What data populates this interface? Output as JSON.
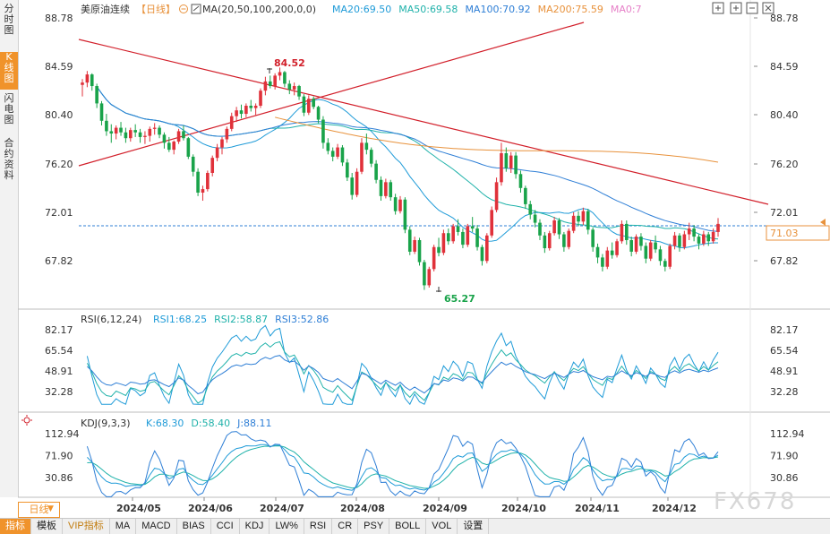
{
  "side_tabs": [
    {
      "label": "分时图"
    },
    {
      "label": "K线图",
      "active": true
    },
    {
      "label": "闪电图"
    },
    {
      "label": "合约资料"
    }
  ],
  "header": {
    "symbol": "美原油连续",
    "period_tag": "【日线】",
    "ma_label": "MA(20,50,100,200,0,0)",
    "ma_values": [
      {
        "text": "MA20:69.50",
        "color": "#1f9bd8"
      },
      {
        "text": "MA50:69.58",
        "color": "#20b2aa"
      },
      {
        "text": "MA100:70.92",
        "color": "#2f7fd6"
      },
      {
        "text": "MA200:75.59",
        "color": "#e8923c"
      },
      {
        "text": "MA0:7",
        "color": "#e680c8"
      }
    ]
  },
  "price_axis": {
    "ticks": [
      "88.78",
      "84.59",
      "80.40",
      "76.20",
      "72.01",
      "67.82"
    ]
  },
  "current_price": "71.03",
  "annotations": {
    "high": "84.52",
    "low": "65.27"
  },
  "rsi": {
    "label": "RSI(6,12,24)",
    "values": [
      {
        "text": "RSI1:68.25",
        "color": "#1f9bd8"
      },
      {
        "text": "RSI2:58.87",
        "color": "#20b2aa"
      },
      {
        "text": "RSI3:52.86",
        "color": "#2f7fd6"
      }
    ],
    "ticks": [
      "82.17",
      "65.54",
      "48.91",
      "32.28"
    ]
  },
  "kdj": {
    "label": "KDJ(9,3,3)",
    "values": [
      {
        "text": "K:68.30",
        "color": "#1f9bd8"
      },
      {
        "text": "D:58.40",
        "color": "#20b2aa"
      },
      {
        "text": "J:88.11",
        "color": "#2f7fd6"
      }
    ],
    "ticks": [
      "112.94",
      "71.90",
      "30.86"
    ]
  },
  "x_axis": {
    "labels": [
      "2024/05",
      "2024/06",
      "2024/07",
      "2024/08",
      "2024/09",
      "2024/10",
      "2024/11",
      "2024/12"
    ]
  },
  "period_button": "日线",
  "bottom_tabs": [
    "指标",
    "模板",
    "VIP指标",
    "MA",
    "MACD",
    "BIAS",
    "CCI",
    "KDJ",
    "LW%",
    "RSI",
    "CR",
    "PSY",
    "BOLL",
    "VOL",
    "设置"
  ],
  "watermark": "FX678",
  "colors": {
    "up": "#e0313a",
    "down": "#19a34a",
    "trendline": "#d21f2a",
    "ma200": "#e8923c"
  },
  "chart_data": [
    {
      "type": "candlestick",
      "title": "美原油连续",
      "x": [
        "2024/05",
        "2024/06",
        "2024/07",
        "2024/08",
        "2024/09",
        "2024/10",
        "2024/11",
        "2024/12"
      ],
      "ylim": [
        64,
        89
      ],
      "ohlc_approx": [
        [
          83.0,
          83.5,
          82.0,
          83.2
        ],
        [
          83.2,
          84.2,
          82.8,
          83.9
        ],
        [
          83.9,
          84.0,
          82.5,
          82.9
        ],
        [
          82.9,
          83.1,
          81.0,
          81.4
        ],
        [
          81.4,
          81.6,
          79.5,
          79.9
        ],
        [
          79.9,
          80.5,
          78.6,
          79.0
        ],
        [
          79.0,
          79.6,
          78.0,
          78.8
        ],
        [
          78.8,
          79.5,
          78.3,
          79.3
        ],
        [
          79.3,
          79.8,
          78.6,
          78.9
        ],
        [
          78.9,
          79.3,
          78.0,
          78.4
        ],
        [
          78.4,
          79.3,
          78.1,
          79.1
        ],
        [
          79.1,
          79.6,
          78.5,
          78.9
        ],
        [
          78.9,
          79.2,
          78.0,
          78.5
        ],
        [
          78.5,
          79.0,
          77.9,
          78.6
        ],
        [
          78.6,
          79.4,
          78.1,
          79.2
        ],
        [
          79.2,
          79.7,
          78.7,
          79.3
        ],
        [
          79.3,
          79.5,
          78.4,
          78.7
        ],
        [
          78.7,
          78.9,
          77.5,
          78.0
        ],
        [
          78.0,
          78.5,
          77.2,
          77.4
        ],
        [
          77.4,
          78.2,
          77.0,
          78.1
        ],
        [
          78.1,
          79.2,
          77.9,
          79.0
        ],
        [
          79.0,
          79.5,
          78.2,
          78.4
        ],
        [
          78.4,
          78.5,
          76.6,
          76.8
        ],
        [
          76.8,
          77.0,
          75.1,
          75.5
        ],
        [
          75.5,
          75.8,
          73.4,
          73.7
        ],
        [
          73.7,
          74.3,
          73.0,
          74.0
        ],
        [
          74.0,
          75.6,
          73.8,
          75.4
        ],
        [
          75.4,
          76.9,
          75.1,
          76.7
        ],
        [
          76.7,
          77.9,
          76.4,
          77.6
        ],
        [
          77.6,
          78.5,
          77.0,
          78.3
        ],
        [
          78.3,
          79.4,
          78.0,
          79.2
        ],
        [
          79.2,
          80.6,
          79.0,
          80.3
        ],
        [
          80.3,
          81.1,
          79.8,
          80.8
        ],
        [
          80.8,
          81.3,
          80.1,
          80.5
        ],
        [
          80.5,
          81.4,
          80.2,
          81.2
        ],
        [
          81.2,
          81.7,
          80.7,
          81.0
        ],
        [
          81.0,
          81.4,
          80.4,
          81.2
        ],
        [
          81.2,
          82.7,
          81.0,
          82.5
        ],
        [
          82.5,
          83.7,
          82.1,
          83.3
        ],
        [
          83.3,
          83.8,
          82.7,
          82.9
        ],
        [
          82.9,
          84.0,
          82.6,
          83.8
        ],
        [
          83.8,
          84.5,
          83.4,
          84.1
        ],
        [
          84.1,
          84.2,
          82.8,
          83.1
        ],
        [
          83.1,
          83.4,
          82.2,
          82.6
        ],
        [
          82.6,
          83.2,
          82.1,
          82.9
        ],
        [
          82.9,
          83.0,
          81.7,
          82.0
        ],
        [
          82.0,
          82.2,
          80.3,
          80.6
        ],
        [
          80.6,
          82.1,
          80.4,
          81.8
        ],
        [
          81.8,
          82.0,
          80.9,
          81.1
        ],
        [
          81.1,
          81.2,
          79.7,
          80.0
        ],
        [
          80.0,
          80.3,
          77.5,
          78.0
        ],
        [
          78.0,
          78.4,
          77.0,
          77.3
        ],
        [
          77.3,
          77.6,
          76.4,
          76.8
        ],
        [
          76.8,
          77.9,
          76.6,
          77.6
        ],
        [
          77.6,
          77.8,
          76.0,
          76.3
        ],
        [
          76.3,
          76.6,
          74.7,
          75.0
        ],
        [
          75.0,
          75.4,
          73.1,
          73.5
        ],
        [
          73.5,
          75.8,
          73.3,
          75.5
        ],
        [
          75.5,
          78.4,
          75.3,
          78.0
        ],
        [
          78.0,
          78.8,
          77.0,
          77.4
        ],
        [
          77.4,
          77.6,
          75.9,
          76.2
        ],
        [
          76.2,
          76.5,
          74.5,
          74.8
        ],
        [
          74.8,
          75.1,
          73.0,
          73.4
        ],
        [
          73.4,
          74.9,
          73.2,
          74.6
        ],
        [
          74.6,
          74.8,
          73.0,
          73.3
        ],
        [
          73.3,
          73.6,
          71.8,
          72.1
        ],
        [
          72.1,
          73.4,
          71.9,
          73.1
        ],
        [
          73.1,
          73.3,
          70.2,
          70.5
        ],
        [
          70.5,
          70.8,
          68.3,
          68.6
        ],
        [
          68.6,
          69.9,
          68.4,
          69.6
        ],
        [
          69.6,
          69.8,
          67.4,
          67.7
        ],
        [
          67.7,
          67.9,
          65.3,
          65.7
        ],
        [
          65.7,
          67.3,
          65.5,
          67.1
        ],
        [
          67.1,
          69.2,
          66.9,
          69.0
        ],
        [
          69.0,
          69.8,
          68.2,
          68.5
        ],
        [
          68.5,
          70.5,
          68.3,
          70.2
        ],
        [
          70.2,
          70.6,
          69.2,
          69.5
        ],
        [
          69.5,
          71.0,
          69.3,
          70.8
        ],
        [
          70.8,
          71.4,
          70.0,
          70.3
        ],
        [
          70.3,
          70.6,
          68.9,
          69.2
        ],
        [
          69.2,
          71.0,
          69.0,
          70.8
        ],
        [
          70.8,
          71.6,
          70.3,
          70.6
        ],
        [
          70.6,
          70.9,
          68.7,
          69.0
        ],
        [
          69.0,
          69.2,
          67.4,
          67.8
        ],
        [
          67.8,
          70.2,
          67.6,
          70.0
        ],
        [
          70.0,
          72.5,
          69.8,
          72.2
        ],
        [
          72.2,
          75.0,
          72.0,
          74.6
        ],
        [
          74.6,
          78.0,
          74.3,
          77.1
        ],
        [
          77.1,
          77.6,
          75.5,
          75.8
        ],
        [
          75.8,
          77.2,
          75.4,
          76.9
        ],
        [
          76.9,
          77.2,
          74.9,
          75.3
        ],
        [
          75.3,
          75.6,
          73.7,
          74.1
        ],
        [
          74.1,
          74.3,
          72.3,
          72.7
        ],
        [
          72.7,
          73.0,
          71.4,
          71.8
        ],
        [
          71.8,
          72.2,
          70.7,
          71.1
        ],
        [
          71.1,
          71.4,
          69.6,
          70.0
        ],
        [
          70.0,
          70.3,
          68.5,
          68.9
        ],
        [
          68.9,
          70.4,
          68.7,
          70.2
        ],
        [
          70.2,
          71.6,
          70.0,
          71.3
        ],
        [
          71.3,
          71.5,
          69.7,
          70.1
        ],
        [
          70.1,
          70.3,
          68.6,
          69.0
        ],
        [
          69.0,
          70.6,
          68.8,
          70.4
        ],
        [
          70.4,
          72.0,
          70.2,
          71.7
        ],
        [
          71.7,
          72.1,
          70.8,
          71.2
        ],
        [
          71.2,
          72.4,
          70.9,
          72.1
        ],
        [
          72.1,
          72.3,
          70.1,
          70.5
        ],
        [
          70.5,
          70.7,
          68.6,
          69.0
        ],
        [
          69.0,
          69.3,
          67.6,
          68.1
        ],
        [
          68.1,
          68.4,
          66.9,
          67.3
        ],
        [
          67.3,
          69.0,
          67.1,
          68.7
        ],
        [
          68.7,
          69.4,
          68.0,
          68.3
        ],
        [
          68.3,
          69.7,
          68.1,
          69.5
        ],
        [
          69.5,
          71.3,
          69.3,
          71.0
        ],
        [
          71.0,
          71.3,
          69.2,
          69.6
        ],
        [
          69.6,
          69.9,
          68.2,
          68.6
        ],
        [
          68.6,
          70.1,
          68.4,
          69.9
        ],
        [
          69.9,
          70.2,
          68.7,
          69.1
        ],
        [
          69.1,
          69.4,
          67.6,
          68.0
        ],
        [
          68.0,
          69.6,
          67.8,
          69.4
        ],
        [
          69.4,
          70.0,
          68.5,
          68.8
        ],
        [
          68.8,
          69.1,
          67.4,
          67.8
        ],
        [
          67.8,
          68.0,
          66.9,
          67.3
        ],
        [
          67.3,
          69.3,
          67.1,
          69.1
        ],
        [
          69.1,
          70.3,
          68.8,
          70.0
        ],
        [
          70.0,
          70.2,
          68.6,
          69.0
        ],
        [
          69.0,
          70.4,
          68.8,
          70.1
        ],
        [
          70.1,
          71.1,
          69.6,
          70.6
        ],
        [
          70.6,
          70.9,
          69.5,
          69.9
        ],
        [
          69.9,
          70.1,
          68.8,
          69.3
        ],
        [
          69.3,
          70.4,
          69.1,
          70.1
        ],
        [
          70.1,
          70.3,
          69.1,
          69.5
        ],
        [
          69.5,
          70.6,
          69.3,
          70.3
        ],
        [
          70.3,
          71.5,
          69.9,
          71.0
        ]
      ]
    },
    {
      "type": "line",
      "title": "RSI(6,12,24)",
      "ylim": [
        20,
        90
      ],
      "series": [
        {
          "name": "RSI1"
        },
        {
          "name": "RSI2"
        },
        {
          "name": "RSI3"
        }
      ]
    },
    {
      "type": "line",
      "title": "KDJ(9,3,3)",
      "ylim": [
        0,
        130
      ],
      "series": [
        {
          "name": "K"
        },
        {
          "name": "D"
        },
        {
          "name": "J"
        }
      ]
    }
  ]
}
